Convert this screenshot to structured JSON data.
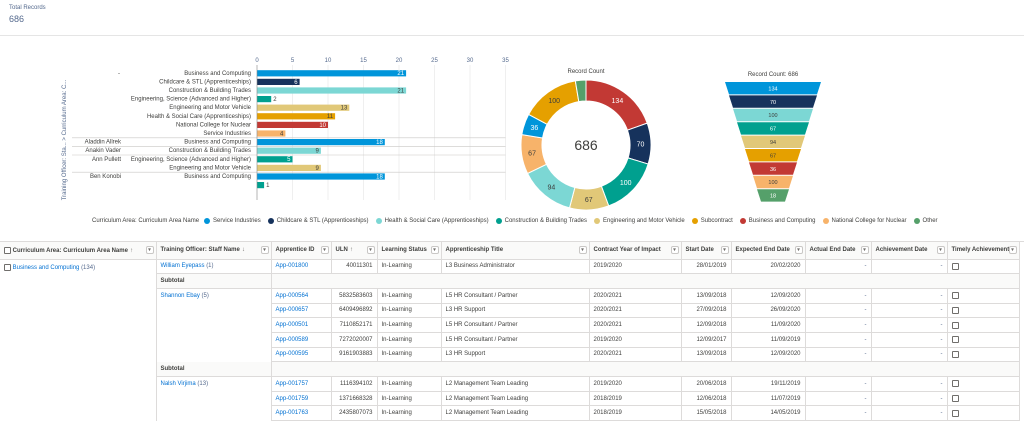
{
  "summary": {
    "label": "Total Records",
    "value": "686"
  },
  "chart_data": [
    {
      "type": "bar",
      "orientation": "horizontal",
      "xlim": [
        0,
        35
      ],
      "x_ticks": [
        "0",
        "5",
        "10",
        "15",
        "20",
        "25",
        "30",
        "35"
      ],
      "ylabel_outer": "Training Officer: Sta... >  Curriculum Area: C...",
      "groups": [
        {
          "officer": "-",
          "rows": [
            {
              "area": "Business and Computing",
              "value": 21,
              "color": "#0095da"
            },
            {
              "area": "Childcare & STL (Apprenticeships)",
              "value": 6,
              "color": "#16325c"
            },
            {
              "area": "Construction & Building Trades",
              "value": 21,
              "color": "#7cd7d4"
            },
            {
              "area": "Engineering, Science (Advanced and Higher)",
              "value": 2,
              "color": "#00a08f"
            },
            {
              "area": "Engineering and Motor Vehicle",
              "value": 13,
              "color": "#e1c878"
            },
            {
              "area": "Health & Social Care (Apprenticeships)",
              "value": 11,
              "color": "#e5a000"
            },
            {
              "area": "National College for Nuclear",
              "value": 10,
              "color": "#c23934"
            },
            {
              "area": "Service Industries",
              "value": 4,
              "color": "#f7b36a"
            }
          ]
        },
        {
          "officer": "Aladdin Allrek",
          "rows": [
            {
              "area": "Business and Computing",
              "value": 18,
              "color": "#0095da"
            }
          ]
        },
        {
          "officer": "Anakin Vader",
          "rows": [
            {
              "area": "Construction & Building Trades",
              "value": 9,
              "color": "#7cd7d4"
            }
          ]
        },
        {
          "officer": "Ann Pullett",
          "rows": [
            {
              "area": "Engineering, Science (Advanced and Higher)",
              "value": 5,
              "color": "#00a08f"
            },
            {
              "area": "Engineering and Motor Vehicle",
              "value": 9,
              "color": "#e1c878"
            }
          ]
        },
        {
          "officer": "Ben Konobi",
          "rows": [
            {
              "area": "Business and Computing",
              "value": 18,
              "color": "#0095da"
            },
            {
              "area": "",
              "value": 1,
              "color": "#00a08f"
            }
          ]
        }
      ]
    },
    {
      "type": "pie",
      "variant": "donut",
      "title": "Record Count",
      "center_label": "686",
      "slices": [
        {
          "value": 134,
          "color": "#c23934"
        },
        {
          "value": 70,
          "color": "#16325c"
        },
        {
          "value": 100,
          "color": "#00a08f"
        },
        {
          "value": 67,
          "color": "#e1c878"
        },
        {
          "value": 94,
          "color": "#7cd7d4"
        },
        {
          "value": 67,
          "color": "#f7b36a"
        },
        {
          "value": 36,
          "color": "#0095da"
        },
        {
          "value": 100,
          "color": "#e5a000"
        },
        {
          "value": 18,
          "color": "#55a06a"
        }
      ]
    },
    {
      "type": "funnel",
      "title": "Record Count: 686",
      "stages": [
        {
          "value": 134,
          "color": "#0095da"
        },
        {
          "value": 70,
          "color": "#16325c"
        },
        {
          "value": 100,
          "color": "#7cd7d4"
        },
        {
          "value": 67,
          "color": "#00a08f"
        },
        {
          "value": 94,
          "color": "#e1c878"
        },
        {
          "value": 67,
          "color": "#e5a000"
        },
        {
          "value": 36,
          "color": "#c23934"
        },
        {
          "value": 100,
          "color": "#f7b36a"
        },
        {
          "value": 18,
          "color": "#55a06a"
        }
      ]
    }
  ],
  "legend": {
    "title": "Curriculum Area: Curriculum Area Name",
    "items": [
      {
        "label": "Service Industries",
        "color": "#0095da"
      },
      {
        "label": "Childcare & STL (Apprenticeships)",
        "color": "#16325c"
      },
      {
        "label": "Health & Social Care (Apprenticeships)",
        "color": "#7cd7d4"
      },
      {
        "label": "Construction & Building Trades",
        "color": "#00a08f"
      },
      {
        "label": "Engineering and Motor Vehicle",
        "color": "#e1c878"
      },
      {
        "label": "Subcontract",
        "color": "#e5a000"
      },
      {
        "label": "Business and Computing",
        "color": "#c23934"
      },
      {
        "label": "National College for Nuclear",
        "color": "#f7b36a"
      },
      {
        "label": "Other",
        "color": "#55a06a"
      }
    ]
  },
  "table": {
    "headers": {
      "area": "Curriculum Area: Curriculum Area Name",
      "officer": "Training Officer: Staff Name",
      "app_id": "Apprentice ID",
      "uln": "ULN",
      "status": "Learning Status",
      "title": "Apprenticeship Title",
      "year": "Contract Year of Impact",
      "start": "Start Date",
      "exp_end": "Expected End Date",
      "act_end": "Actual End Date",
      "ach": "Achievement Date",
      "timely": "Timely Achievement"
    },
    "area_group": {
      "name": "Business and Computing",
      "count": "(134)"
    },
    "subtotal_label": "Subtotal",
    "officers": [
      {
        "name": "William Eyepass",
        "count": "(1)"
      },
      {
        "name": "Shannon Ebay",
        "count": "(5)"
      },
      {
        "name": "Nalsh Virjima",
        "count": "(13)"
      }
    ],
    "rows": [
      {
        "id": "App-001800",
        "uln": "40011301",
        "status": "In-Learning",
        "title": "L3 Business Administrator",
        "year": "2019/2020",
        "start": "28/01/2019",
        "exp_end": "20/02/2020",
        "act_end": "-",
        "ach": "-"
      },
      {
        "id": "App-000564",
        "uln": "5832583603",
        "status": "In-Learning",
        "title": "L5 HR Consultant / Partner",
        "year": "2020/2021",
        "start": "13/09/2018",
        "exp_end": "12/09/2020",
        "act_end": "-",
        "ach": "-"
      },
      {
        "id": "App-000657",
        "uln": "6409496892",
        "status": "In-Learning",
        "title": "L3 HR Support",
        "year": "2020/2021",
        "start": "27/09/2018",
        "exp_end": "26/09/2020",
        "act_end": "-",
        "ach": "-"
      },
      {
        "id": "App-000501",
        "uln": "7110852171",
        "status": "In-Learning",
        "title": "L5 HR Consultant / Partner",
        "year": "2020/2021",
        "start": "12/09/2018",
        "exp_end": "11/09/2020",
        "act_end": "-",
        "ach": "-"
      },
      {
        "id": "App-000589",
        "uln": "7272020007",
        "status": "In-Learning",
        "title": "L5 HR Consultant / Partner",
        "year": "2019/2020",
        "start": "12/09/2017",
        "exp_end": "11/09/2019",
        "act_end": "-",
        "ach": "-"
      },
      {
        "id": "App-000595",
        "uln": "9161903883",
        "status": "In-Learning",
        "title": "L3 HR Support",
        "year": "2020/2021",
        "start": "13/09/2018",
        "exp_end": "12/09/2020",
        "act_end": "-",
        "ach": "-"
      },
      {
        "id": "App-001757",
        "uln": "1116394102",
        "status": "In-Learning",
        "title": "L2 Management Team Leading",
        "year": "2019/2020",
        "start": "20/06/2018",
        "exp_end": "19/11/2019",
        "act_end": "-",
        "ach": "-"
      },
      {
        "id": "App-001759",
        "uln": "1371668328",
        "status": "In-Learning",
        "title": "L2 Management Team Leading",
        "year": "2018/2019",
        "start": "12/06/2018",
        "exp_end": "11/07/2019",
        "act_end": "-",
        "ach": "-"
      },
      {
        "id": "App-001763",
        "uln": "2435807073",
        "status": "In-Learning",
        "title": "L2 Management Team Leading",
        "year": "2018/2019",
        "start": "15/05/2018",
        "exp_end": "14/05/2019",
        "act_end": "-",
        "ach": "-"
      }
    ]
  }
}
